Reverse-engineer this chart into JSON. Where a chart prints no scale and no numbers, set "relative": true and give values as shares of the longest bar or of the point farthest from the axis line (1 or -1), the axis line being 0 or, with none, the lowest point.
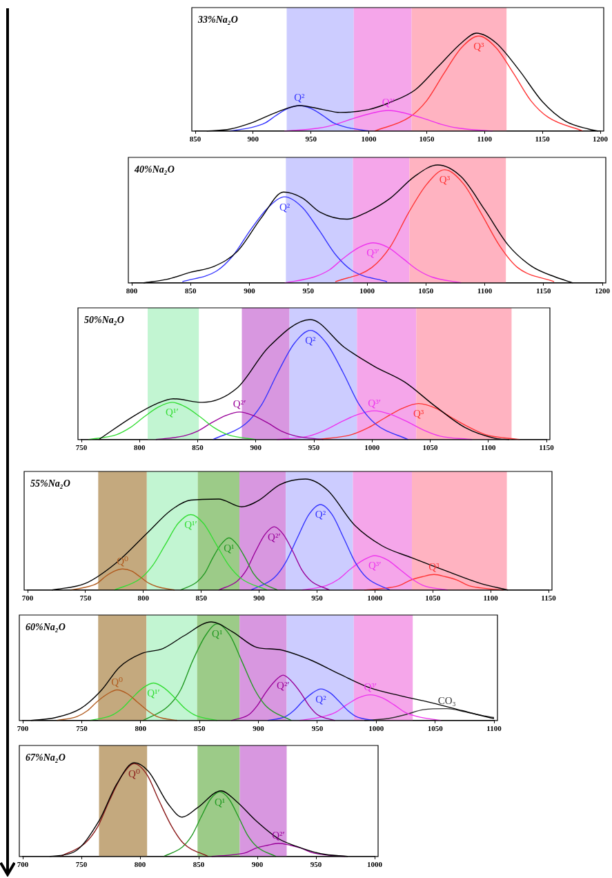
{
  "chart_data": [
    {
      "type": "line",
      "title": "33%Na₂O",
      "relative": true,
      "marker": "none",
      "xlim": [
        850,
        1200
      ],
      "xticks": [
        850,
        900,
        950,
        1000,
        1050,
        1100,
        1150,
        1200
      ],
      "bands": [
        {
          "axis": "x",
          "from": 929,
          "to": 987,
          "color": "#ccccff"
        },
        {
          "axis": "x",
          "from": 987,
          "to": 1037,
          "color": "#f5a6ea"
        },
        {
          "axis": "x",
          "from": 1037,
          "to": 1119,
          "color": "#ffb3c1"
        }
      ],
      "series": [
        {
          "color": "#000000",
          "x": [
            860,
            880,
            900,
            920,
            940,
            960,
            975,
            1000,
            1020,
            1040,
            1060,
            1080,
            1093,
            1110,
            1130,
            1150,
            1170,
            1190,
            1198
          ],
          "values": [
            0,
            0.02,
            0.09,
            0.19,
            0.26,
            0.22,
            0.19,
            0.22,
            0.3,
            0.42,
            0.66,
            0.9,
            1,
            0.9,
            0.62,
            0.3,
            0.1,
            0.02,
            0
          ]
        },
        {
          "name": "Q²",
          "color": "#3333ff",
          "x": [
            880,
            900,
            910,
            920,
            930,
            940,
            950,
            960,
            970,
            980,
            1000
          ],
          "values": [
            0,
            0.04,
            0.08,
            0.16,
            0.23,
            0.26,
            0.23,
            0.16,
            0.08,
            0.04,
            0
          ]
        },
        {
          "name": "Q³′",
          "color": "#ee33ee",
          "x": [
            927,
            957,
            972,
            987,
            1002,
            1017,
            1032,
            1047,
            1062,
            1077,
            1107
          ],
          "values": [
            0,
            0.03,
            0.07,
            0.13,
            0.18,
            0.21,
            0.18,
            0.13,
            0.07,
            0.03,
            0
          ]
        },
        {
          "name": "Q³",
          "color": "#ff3333",
          "x": [
            1005,
            1035,
            1050,
            1065,
            1080,
            1095,
            1110,
            1125,
            1140,
            1155,
            1185
          ],
          "values": [
            0,
            0.14,
            0.31,
            0.59,
            0.85,
            0.97,
            0.85,
            0.59,
            0.31,
            0.14,
            0
          ]
        }
      ]
    },
    {
      "type": "line",
      "title": "40%Na₂O",
      "relative": true,
      "marker": "none",
      "xlim": [
        800,
        1200
      ],
      "xticks": [
        800,
        850,
        900,
        950,
        1000,
        1050,
        1100,
        1150,
        1200
      ],
      "bands": [
        {
          "axis": "x",
          "from": 931,
          "to": 988,
          "color": "#ccccff"
        },
        {
          "axis": "x",
          "from": 988,
          "to": 1036,
          "color": "#f5a6ea"
        },
        {
          "axis": "x",
          "from": 1036,
          "to": 1118,
          "color": "#ffb3c1"
        }
      ],
      "series": [
        {
          "color": "#000000",
          "x": [
            810,
            830,
            850,
            870,
            890,
            910,
            929,
            945,
            960,
            983,
            1000,
            1020,
            1040,
            1060,
            1080,
            1100,
            1120,
            1140,
            1160,
            1175
          ],
          "values": [
            0,
            0.03,
            0.09,
            0.14,
            0.27,
            0.55,
            0.77,
            0.72,
            0.6,
            0.54,
            0.6,
            0.72,
            0.9,
            1,
            0.9,
            0.62,
            0.32,
            0.14,
            0.05,
            0
          ]
        },
        {
          "name": "Q²",
          "color": "#3333ff",
          "x": [
            843,
            872,
            886,
            901,
            916,
            930,
            945,
            959,
            974,
            988,
            1017
          ],
          "values": [
            0.01,
            0.1,
            0.23,
            0.45,
            0.64,
            0.73,
            0.64,
            0.45,
            0.23,
            0.1,
            0.01
          ]
        },
        {
          "name": "Q³′",
          "color": "#ee33ee",
          "x": [
            930,
            955,
            968,
            980,
            993,
            1005,
            1018,
            1030,
            1043,
            1055,
            1080
          ],
          "values": [
            0,
            0.05,
            0.11,
            0.21,
            0.3,
            0.34,
            0.3,
            0.21,
            0.11,
            0.05,
            0
          ]
        },
        {
          "name": "Q³",
          "color": "#ff3333",
          "x": [
            973,
            1004,
            1020,
            1035,
            1051,
            1066,
            1082,
            1097,
            1113,
            1128,
            1159
          ],
          "values": [
            0.01,
            0.13,
            0.31,
            0.59,
            0.84,
            0.96,
            0.84,
            0.59,
            0.31,
            0.13,
            0.01
          ]
        }
      ]
    },
    {
      "type": "line",
      "title": "50%Na₂O",
      "relative": true,
      "marker": "none",
      "xlim": [
        750,
        1150
      ],
      "xticks": [
        750,
        800,
        850,
        900,
        950,
        1000,
        1050,
        1100,
        1150
      ],
      "bands": [
        {
          "axis": "x",
          "from": 807,
          "to": 851,
          "color": "#c2f5d2"
        },
        {
          "axis": "x",
          "from": 888,
          "to": 929,
          "color": "#d897e0"
        },
        {
          "axis": "x",
          "from": 929,
          "to": 987,
          "color": "#ccccff"
        },
        {
          "axis": "x",
          "from": 987,
          "to": 1038,
          "color": "#f5a6ea"
        },
        {
          "axis": "x",
          "from": 1038,
          "to": 1120,
          "color": "#ffb3c1"
        }
      ],
      "series": [
        {
          "color": "#000000",
          "x": [
            765,
            794,
            815,
            829,
            854,
            884,
            911,
            947,
            976,
            1002,
            1028,
            1054,
            1080,
            1106,
            1118
          ],
          "values": [
            0,
            0.19,
            0.3,
            0.34,
            0.31,
            0.43,
            0.77,
            1,
            0.77,
            0.61,
            0.48,
            0.28,
            0.1,
            0.01,
            0
          ]
        },
        {
          "name": "Q¹′",
          "color": "#33dd33",
          "x": [
            756,
            780,
            792,
            804,
            816,
            828,
            840,
            852,
            864,
            876,
            900
          ],
          "values": [
            0,
            0.04,
            0.1,
            0.19,
            0.27,
            0.31,
            0.27,
            0.19,
            0.1,
            0.04,
            0
          ]
        },
        {
          "name": "Q²′",
          "color": "#990099",
          "x": [
            814,
            838,
            850,
            862,
            874,
            886,
            898,
            910,
            922,
            934,
            958
          ],
          "values": [
            0,
            0.03,
            0.07,
            0.14,
            0.2,
            0.23,
            0.2,
            0.14,
            0.07,
            0.03,
            0
          ]
        },
        {
          "name": "Q²",
          "color": "#3333ff",
          "x": [
            863,
            891,
            905,
            919,
            933,
            947,
            961,
            975,
            989,
            1003,
            1031
          ],
          "values": [
            0,
            0.13,
            0.29,
            0.56,
            0.8,
            0.91,
            0.8,
            0.56,
            0.29,
            0.13,
            0
          ]
        },
        {
          "name": "Q³′",
          "color": "#ee33ee",
          "x": [
            918,
            946,
            960,
            974,
            988,
            1002,
            1016,
            1030,
            1044,
            1058,
            1086
          ],
          "values": [
            0,
            0.03,
            0.08,
            0.15,
            0.21,
            0.24,
            0.21,
            0.15,
            0.08,
            0.03,
            0
          ]
        },
        {
          "name": "Q³",
          "color": "#ff3333",
          "x": [
            953,
            982,
            997,
            1011,
            1026,
            1040,
            1055,
            1069,
            1084,
            1098,
            1127
          ],
          "values": [
            0,
            0.04,
            0.1,
            0.18,
            0.26,
            0.3,
            0.26,
            0.18,
            0.1,
            0.04,
            0
          ]
        }
      ]
    },
    {
      "type": "line",
      "title": "55%Na₂O",
      "relative": true,
      "marker": "none",
      "xlim": [
        700,
        1150
      ],
      "xticks": [
        700,
        750,
        800,
        850,
        900,
        950,
        1000,
        1050,
        1100,
        1150
      ],
      "bands": [
        {
          "axis": "x",
          "from": 761,
          "to": 803,
          "color": "#c4a97e"
        },
        {
          "axis": "x",
          "from": 803,
          "to": 847,
          "color": "#c2f5d2"
        },
        {
          "axis": "x",
          "from": 847,
          "to": 883,
          "color": "#9ccb88"
        },
        {
          "axis": "x",
          "from": 883,
          "to": 923,
          "color": "#d897e0"
        },
        {
          "axis": "x",
          "from": 923,
          "to": 981,
          "color": "#ccccff"
        },
        {
          "axis": "x",
          "from": 981,
          "to": 1032,
          "color": "#f5a6ea"
        },
        {
          "axis": "x",
          "from": 1032,
          "to": 1114,
          "color": "#ffb3c1"
        }
      ],
      "series": [
        {
          "color": "#000000",
          "x": [
            721,
            750,
            776,
            803,
            824,
            841,
            865,
            885,
            900,
            918,
            940,
            959,
            982,
            1006,
            1032,
            1062,
            1091,
            1115
          ],
          "values": [
            0,
            0.06,
            0.24,
            0.51,
            0.72,
            0.81,
            0.82,
            0.75,
            0.81,
            0.95,
            1,
            0.9,
            0.59,
            0.4,
            0.29,
            0.17,
            0.06,
            0
          ]
        },
        {
          "name": "Q⁰",
          "color": "#b05a1e",
          "x": [
            737,
            752,
            760,
            767,
            775,
            782,
            790,
            797,
            805,
            812,
            827
          ],
          "values": [
            0,
            0.03,
            0.06,
            0.12,
            0.17,
            0.19,
            0.17,
            0.12,
            0.06,
            0.03,
            0
          ]
        },
        {
          "name": "Q¹′",
          "color": "#33dd33",
          "x": [
            775,
            797,
            808,
            819,
            830,
            841,
            852,
            863,
            874,
            885,
            907
          ],
          "values": [
            0,
            0.1,
            0.22,
            0.41,
            0.6,
            0.68,
            0.6,
            0.41,
            0.22,
            0.1,
            0
          ]
        },
        {
          "name": "Q¹",
          "color": "#229922",
          "x": [
            832,
            846,
            853,
            860,
            867,
            874,
            881,
            888,
            895,
            902,
            916
          ],
          "values": [
            0,
            0.07,
            0.15,
            0.29,
            0.41,
            0.47,
            0.41,
            0.29,
            0.15,
            0.07,
            0
          ]
        },
        {
          "name": "Q²′",
          "color": "#990099",
          "x": [
            865,
            881,
            889,
            897,
            905,
            913,
            921,
            929,
            937,
            945,
            961
          ],
          "values": [
            0,
            0.08,
            0.18,
            0.35,
            0.5,
            0.57,
            0.5,
            0.35,
            0.18,
            0.08,
            0
          ]
        },
        {
          "name": "Q²",
          "color": "#3333ff",
          "x": [
            893,
            913,
            923,
            933,
            943,
            953,
            963,
            973,
            983,
            993,
            1013
          ],
          "values": [
            0,
            0.11,
            0.25,
            0.47,
            0.68,
            0.77,
            0.68,
            0.47,
            0.25,
            0.11,
            0
          ]
        },
        {
          "name": "Q³′",
          "color": "#ee33ee",
          "x": [
            937,
            958,
            969,
            979,
            990,
            1000,
            1011,
            1021,
            1032,
            1042,
            1063
          ],
          "values": [
            0,
            0.04,
            0.1,
            0.19,
            0.27,
            0.31,
            0.27,
            0.19,
            0.1,
            0.04,
            0
          ]
        },
        {
          "name": "Q³",
          "color": "#ff3333",
          "x": [
            991,
            1011,
            1021,
            1031,
            1041,
            1051,
            1061,
            1071,
            1081,
            1091,
            1111
          ],
          "values": [
            0,
            0.02,
            0.04,
            0.09,
            0.12,
            0.14,
            0.12,
            0.09,
            0.04,
            0.02,
            0
          ]
        }
      ]
    },
    {
      "type": "line",
      "title": "60%Na₂O",
      "relative": true,
      "marker": "none",
      "xlim": [
        700,
        1100
      ],
      "xticks": [
        700,
        750,
        800,
        850,
        900,
        950,
        1000,
        1050,
        1100
      ],
      "bands": [
        {
          "axis": "x",
          "from": 764,
          "to": 805,
          "color": "#c4a97e"
        },
        {
          "axis": "x",
          "from": 805,
          "to": 848,
          "color": "#c2f5d2"
        },
        {
          "axis": "x",
          "from": 848,
          "to": 884,
          "color": "#9ccb88"
        },
        {
          "axis": "x",
          "from": 884,
          "to": 924,
          "color": "#d897e0"
        },
        {
          "axis": "x",
          "from": 924,
          "to": 981,
          "color": "#ccccff"
        },
        {
          "axis": "x",
          "from": 981,
          "to": 1031,
          "color": "#f5a6ea"
        }
      ],
      "series": [
        {
          "color": "#000000",
          "x": [
            707,
            728,
            749,
            767,
            782,
            801,
            819,
            837,
            860,
            878,
            899,
            917,
            943,
            969,
            995,
            1021,
            1047,
            1073,
            1096,
            1100
          ],
          "values": [
            0,
            0.03,
            0.12,
            0.31,
            0.54,
            0.68,
            0.73,
            0.86,
            1,
            0.9,
            0.74,
            0.72,
            0.62,
            0.47,
            0.33,
            0.25,
            0.18,
            0.1,
            0.03,
            0.02
          ]
        },
        {
          "name": "Q⁰",
          "color": "#b05a1e",
          "x": [
            729,
            746,
            755,
            763,
            772,
            780,
            789,
            797,
            806,
            814,
            831
          ],
          "values": [
            0,
            0.04,
            0.1,
            0.19,
            0.27,
            0.31,
            0.27,
            0.19,
            0.1,
            0.04,
            0
          ]
        },
        {
          "name": "Q¹′",
          "color": "#33dd33",
          "x": [
            757,
            775,
            784,
            793,
            802,
            811,
            820,
            829,
            838,
            847,
            865
          ],
          "values": [
            0,
            0.05,
            0.12,
            0.23,
            0.33,
            0.38,
            0.33,
            0.23,
            0.12,
            0.05,
            0
          ]
        },
        {
          "name": "Q¹",
          "color": "#229922",
          "x": [
            802,
            823,
            834,
            844,
            855,
            865,
            876,
            886,
            897,
            907,
            928
          ],
          "values": [
            0,
            0.14,
            0.31,
            0.6,
            0.86,
            0.98,
            0.86,
            0.6,
            0.31,
            0.14,
            0
          ]
        },
        {
          "name": "Q²′",
          "color": "#990099",
          "x": [
            877,
            892,
            899,
            906,
            914,
            921,
            928,
            936,
            943,
            950,
            965
          ],
          "values": [
            0,
            0.06,
            0.15,
            0.28,
            0.4,
            0.46,
            0.4,
            0.28,
            0.15,
            0.06,
            0
          ]
        },
        {
          "name": "Q²",
          "color": "#3333ff",
          "x": [
            908,
            923,
            930,
            938,
            946,
            953,
            961,
            968,
            976,
            983,
            998
          ],
          "values": [
            0,
            0.04,
            0.1,
            0.2,
            0.28,
            0.32,
            0.28,
            0.2,
            0.1,
            0.04,
            0
          ]
        },
        {
          "name": "Q³′",
          "color": "#ee33ee",
          "x": [
            935,
            955,
            965,
            975,
            985,
            995,
            1005,
            1015,
            1025,
            1035,
            1055
          ],
          "values": [
            0,
            0.04,
            0.08,
            0.16,
            0.23,
            0.26,
            0.23,
            0.16,
            0.08,
            0.04,
            0
          ]
        },
        {
          "name": "CO₃",
          "color": "#333333",
          "x": [
            990,
            1010,
            1025,
            1040,
            1060,
            1075,
            1090,
            1100
          ],
          "values": [
            0,
            0.02,
            0.06,
            0.11,
            0.12,
            0.09,
            0.05,
            0.03
          ]
        }
      ]
    },
    {
      "type": "line",
      "title": "67%Na₂O",
      "relative": true,
      "marker": "none",
      "xlim": [
        700,
        1000
      ],
      "xticks": [
        700,
        750,
        800,
        850,
        900,
        950,
        1000
      ],
      "bands": [
        {
          "axis": "x",
          "from": 765,
          "to": 806,
          "color": "#c4a97e"
        },
        {
          "axis": "x",
          "from": 849,
          "to": 885,
          "color": "#9ccb88"
        },
        {
          "axis": "x",
          "from": 885,
          "to": 925,
          "color": "#d897e0"
        }
      ],
      "series": [
        {
          "color": "#000000",
          "x": [
            723,
            744,
            765,
            780,
            795,
            807,
            824,
            836,
            849,
            869,
            882,
            899,
            918,
            933,
            954,
            977
          ],
          "values": [
            0,
            0.05,
            0.38,
            0.77,
            1,
            0.91,
            0.56,
            0.42,
            0.52,
            0.7,
            0.59,
            0.38,
            0.19,
            0.11,
            0.03,
            0
          ]
        },
        {
          "name": "Q⁰",
          "color": "#8b1a1a",
          "x": [
            732,
            753,
            764,
            774,
            785,
            795,
            806,
            816,
            827,
            837,
            858
          ],
          "values": [
            0,
            0.14,
            0.32,
            0.6,
            0.87,
            0.99,
            0.87,
            0.6,
            0.32,
            0.14,
            0
          ]
        },
        {
          "name": "Q¹",
          "color": "#229922",
          "x": [
            820,
            836,
            844,
            852,
            860,
            868,
            876,
            884,
            892,
            900,
            916
          ],
          "values": [
            0,
            0.1,
            0.22,
            0.42,
            0.61,
            0.69,
            0.61,
            0.42,
            0.22,
            0.1,
            0
          ]
        },
        {
          "name": "Q²′",
          "color": "#990099",
          "x": [
            861,
            880,
            890,
            899,
            909,
            918,
            928,
            937,
            947,
            956,
            975
          ],
          "values": [
            0,
            0.02,
            0.04,
            0.09,
            0.12,
            0.14,
            0.12,
            0.09,
            0.04,
            0.02,
            0
          ]
        }
      ]
    }
  ]
}
